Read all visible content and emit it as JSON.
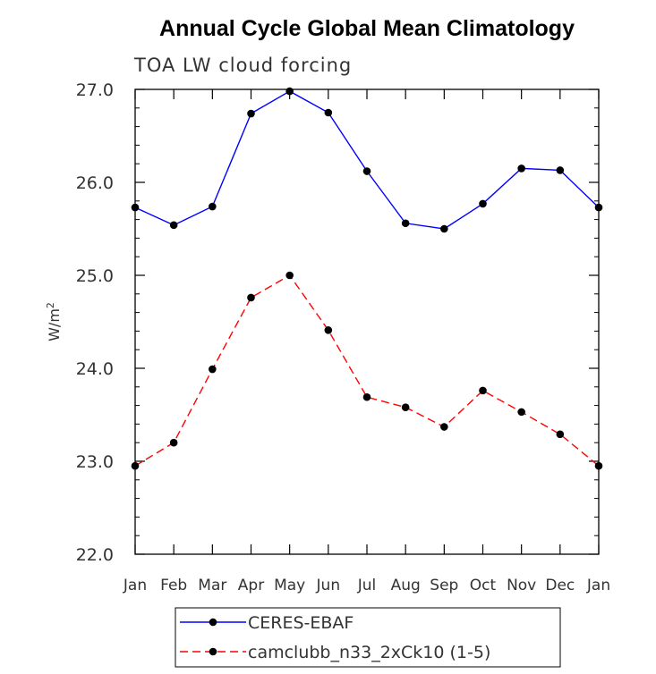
{
  "chart_data": {
    "type": "line",
    "title": "Annual Cycle Global Mean Climatology",
    "subtitle": "TOA LW cloud forcing",
    "ylabel": "W/m",
    "ylabel_sup": "2",
    "xlabel": "",
    "categories": [
      "Jan",
      "Feb",
      "Mar",
      "Apr",
      "May",
      "Jun",
      "Jul",
      "Aug",
      "Sep",
      "Oct",
      "Nov",
      "Dec",
      "Jan"
    ],
    "ylim": [
      22.0,
      27.0
    ],
    "yticks": [
      "22.0",
      "23.0",
      "24.0",
      "25.0",
      "26.0",
      "27.0"
    ],
    "series": [
      {
        "name": "CERES-EBAF",
        "color": "#0000ff",
        "dash": "solid",
        "values": [
          25.73,
          25.54,
          25.74,
          26.74,
          26.98,
          26.75,
          26.12,
          25.56,
          25.5,
          25.77,
          26.15,
          26.13,
          25.73
        ]
      },
      {
        "name": "camclubb_n33_2xCk10 (1-5)",
        "color": "#ff0000",
        "dash": "dashed",
        "values": [
          22.95,
          23.2,
          23.99,
          24.76,
          25.0,
          24.41,
          23.69,
          23.58,
          23.37,
          23.76,
          23.53,
          23.29,
          22.95
        ]
      }
    ],
    "legend_position": "bottom-center",
    "marker_color": "#000000"
  }
}
